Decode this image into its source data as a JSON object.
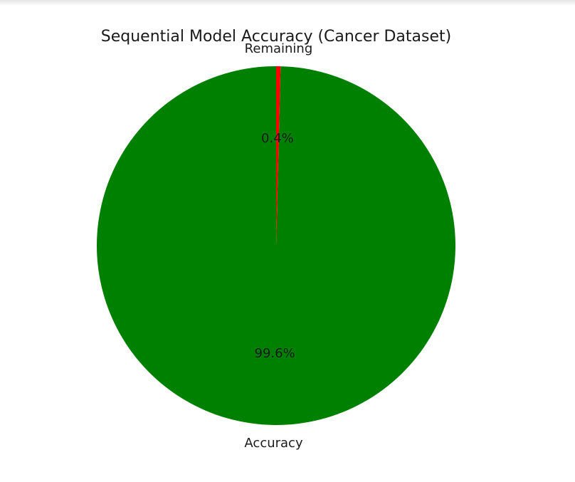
{
  "chart_data": {
    "type": "pie",
    "title": "Sequential Model Accuracy (Cancer Dataset)",
    "labels": [
      "Accuracy",
      "Remaining"
    ],
    "values": [
      99.6,
      0.4
    ],
    "pct_labels": [
      "99.6%",
      "0.4%"
    ],
    "colors": [
      "#008000",
      "#ff0000"
    ],
    "start_angle_deg": 90,
    "legend": "none"
  }
}
